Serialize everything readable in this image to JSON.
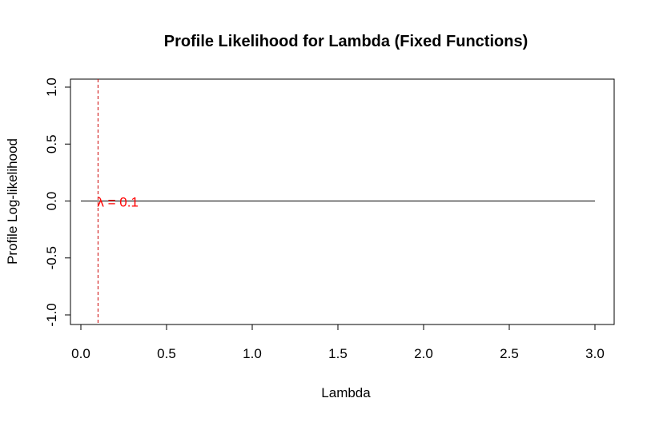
{
  "chart_data": {
    "type": "line",
    "title": "Profile Likelihood for Lambda (Fixed Functions)",
    "xlabel": "Lambda",
    "ylabel": "Profile Log-likelihood",
    "xlim": [
      0.0,
      3.0
    ],
    "ylim": [
      -1.0,
      1.0
    ],
    "x_ticks": [
      0.0,
      0.5,
      1.0,
      1.5,
      2.0,
      2.5,
      3.0
    ],
    "x_tick_labels": [
      "0.0",
      "0.5",
      "1.0",
      "1.5",
      "2.0",
      "2.5",
      "3.0"
    ],
    "y_ticks": [
      -1.0,
      -0.5,
      0.0,
      0.5,
      1.0
    ],
    "y_tick_labels": [
      "-1.0",
      "-0.5",
      "0.0",
      "0.5",
      "1.0"
    ],
    "grid": false,
    "series": [
      {
        "x": [
          0.0,
          3.0
        ],
        "y": [
          0.0,
          0.0
        ],
        "color": "#000000"
      }
    ],
    "vline": {
      "x": 0.1,
      "color": "#cc0000",
      "style": "dashed"
    },
    "annotations": [
      {
        "text": "λ = 0.1",
        "x": 0.1,
        "y": 0.0,
        "color": "#ff0000"
      }
    ]
  }
}
